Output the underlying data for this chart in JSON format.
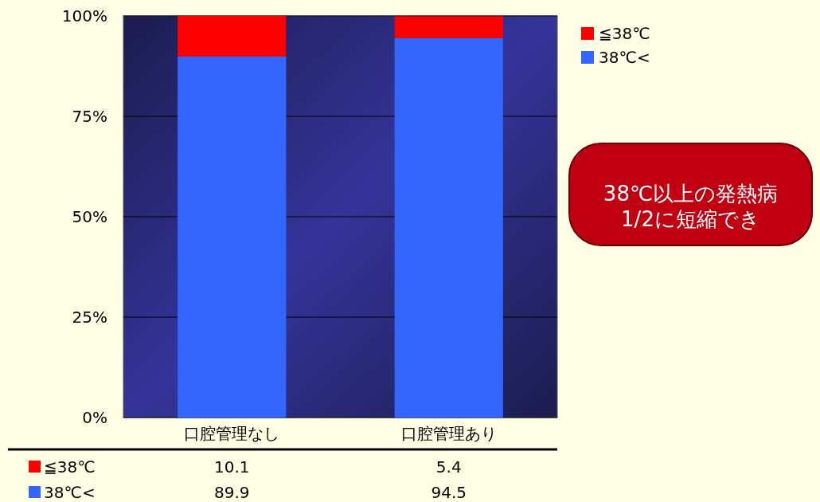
{
  "chart_data": {
    "type": "bar",
    "stacked": true,
    "categories": [
      "口腔管理なし",
      "口腔管理あり"
    ],
    "series": [
      {
        "name": "38℃<",
        "color": "#3366ff",
        "values": [
          89.9,
          94.5
        ]
      },
      {
        "name": "≦38℃",
        "color": "#ff0000",
        "values": [
          10.1,
          5.4
        ]
      }
    ],
    "ylim": [
      0,
      100
    ],
    "yticks": [
      {
        "value": 0,
        "label": "0%"
      },
      {
        "value": 25,
        "label": "25%"
      },
      {
        "value": 50,
        "label": "50%"
      },
      {
        "value": 75,
        "label": "75%"
      },
      {
        "value": 100,
        "label": "100%"
      }
    ],
    "grid": "y",
    "legend": "top right",
    "data_labels": true,
    "annotations": [
      "38℃以上の発熱病\n1/2に短縮でき"
    ]
  }
}
